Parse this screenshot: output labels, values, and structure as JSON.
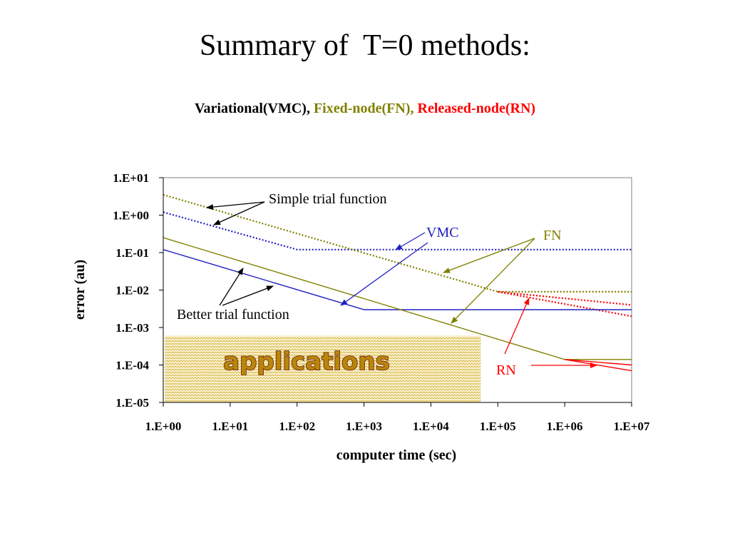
{
  "slide": {
    "title": "Summary of  T=0 methods:",
    "methods_line": [
      {
        "text": "Variational(VMC), ",
        "color": "#000000"
      },
      {
        "text": "Fixed-node(FN), ",
        "color": "#808000"
      },
      {
        "text": "Released-node(RN)",
        "color": "#ff0000"
      }
    ]
  },
  "chart_data": {
    "type": "line",
    "title": "",
    "xlabel": "computer time (sec)",
    "ylabel": "error (au)",
    "x_scale": "log",
    "y_scale": "log",
    "xlim": [
      1,
      10000000
    ],
    "ylim": [
      1e-05,
      10
    ],
    "x_tick_labels": [
      "1.E+00",
      "1.E+01",
      "1.E+02",
      "1.E+03",
      "1.E+04",
      "1.E+05",
      "1.E+06",
      "1.E+07"
    ],
    "y_tick_labels": [
      "1.E+01",
      "1.E+00",
      "1.E-01",
      "1.E-02",
      "1.E-03",
      "1.E-04",
      "1.E-05"
    ],
    "grid": false,
    "series": [
      {
        "method": "VMC",
        "trial": "simple",
        "color": "#2020c0",
        "style": "dotted",
        "x": [
          1,
          100,
          10000000
        ],
        "y": [
          1.2,
          0.12,
          0.12
        ]
      },
      {
        "method": "FN",
        "trial": "simple",
        "color": "#808000",
        "style": "dotted",
        "x": [
          1,
          100000,
          10000000
        ],
        "y": [
          3.5,
          0.009,
          0.009
        ]
      },
      {
        "method": "RN",
        "trial": "simple",
        "color": "#ff0000",
        "style": "dotted",
        "x": [
          100000,
          10000000
        ],
        "y": [
          0.009,
          0.004
        ]
      },
      {
        "method": "RN",
        "trial": "simple",
        "color": "#ff0000",
        "style": "dotted",
        "x": [
          100000,
          10000000
        ],
        "y": [
          0.009,
          0.002
        ]
      },
      {
        "method": "VMC",
        "trial": "better",
        "color": "#2020c0",
        "style": "solid",
        "x": [
          1,
          1000,
          10000000
        ],
        "y": [
          0.12,
          0.003,
          0.003
        ]
      },
      {
        "method": "FN",
        "trial": "better",
        "color": "#808000",
        "style": "solid",
        "x": [
          1,
          1000000,
          10000000
        ],
        "y": [
          0.25,
          0.00014,
          0.00014
        ]
      },
      {
        "method": "RN",
        "trial": "better",
        "color": "#ff0000",
        "style": "solid",
        "x": [
          1000000,
          10000000
        ],
        "y": [
          0.00014,
          0.0001
        ]
      },
      {
        "method": "RN",
        "trial": "better",
        "color": "#ff0000",
        "style": "solid",
        "x": [
          1000000,
          10000000
        ],
        "y": [
          0.00014,
          7e-05
        ]
      }
    ],
    "labels": {
      "simple": "Simple trial function",
      "better": "Better trial function",
      "vmc": "VMC",
      "fn": "FN",
      "rn": "RN",
      "applications": "applications"
    },
    "label_colors": {
      "simple": "#000000",
      "better": "#000000",
      "vmc": "#2020c0",
      "fn": "#808000",
      "rn": "#ff0000"
    },
    "applications_region": {
      "x": [
        1,
        10000
      ],
      "y": [
        1e-05,
        0.0006
      ]
    }
  }
}
